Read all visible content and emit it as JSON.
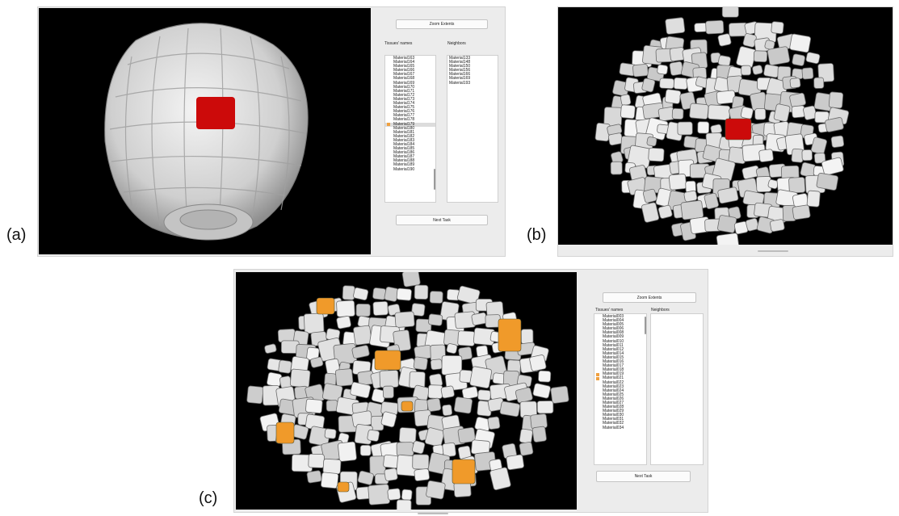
{
  "labels": {
    "a": "(a)",
    "b": "(b)",
    "c": "(c)"
  },
  "colors": {
    "selected_tissue": "#cc0a0a",
    "neighbor_tissue": "#f09a2a",
    "background": "#000000",
    "cell": "#e4e4e4"
  },
  "panel_a": {
    "zoom_label": "Zoom Extents",
    "tissues_header": "Tissues' names",
    "neighbors_header": "Neighbors",
    "tissues": [
      {
        "name": "Material163"
      },
      {
        "name": "Material164"
      },
      {
        "name": "Material165"
      },
      {
        "name": "Material166"
      },
      {
        "name": "Material167"
      },
      {
        "name": "Material168"
      },
      {
        "name": "Material169"
      },
      {
        "name": "Material170"
      },
      {
        "name": "Material171"
      },
      {
        "name": "Material172"
      },
      {
        "name": "Material173"
      },
      {
        "name": "Material174"
      },
      {
        "name": "Material175"
      },
      {
        "name": "Material176"
      },
      {
        "name": "Material177"
      },
      {
        "name": "Material178"
      },
      {
        "name": "Material179",
        "marked": true,
        "selected": true
      },
      {
        "name": "Material180"
      },
      {
        "name": "Material181"
      },
      {
        "name": "Material182"
      },
      {
        "name": "Material183"
      },
      {
        "name": "Material184"
      },
      {
        "name": "Material185"
      },
      {
        "name": "Material186"
      },
      {
        "name": "Material187"
      },
      {
        "name": "Material188"
      },
      {
        "name": "Material189"
      },
      {
        "name": "Material190"
      }
    ],
    "neighbors": [
      "Material133",
      "Material148",
      "Material150",
      "Material156",
      "Material166",
      "Material169",
      "Material193"
    ],
    "next_label": "Next Task"
  },
  "panel_c": {
    "zoom_label": "Zoom Extents",
    "tissues_header": "Tissues' names",
    "neighbors_header": "Neighbors",
    "tissues": [
      {
        "name": "Material003"
      },
      {
        "name": "Material004"
      },
      {
        "name": "Material005"
      },
      {
        "name": "Material006"
      },
      {
        "name": "Material008"
      },
      {
        "name": "Material009"
      },
      {
        "name": "Material010"
      },
      {
        "name": "Material011"
      },
      {
        "name": "Material012"
      },
      {
        "name": "Material014"
      },
      {
        "name": "Material015"
      },
      {
        "name": "Material016"
      },
      {
        "name": "Material017"
      },
      {
        "name": "Material018"
      },
      {
        "name": "Material019",
        "marked": true
      },
      {
        "name": "Material021",
        "marked": true
      },
      {
        "name": "Material022"
      },
      {
        "name": "Material023"
      },
      {
        "name": "Material024"
      },
      {
        "name": "Material025"
      },
      {
        "name": "Material026"
      },
      {
        "name": "Material027"
      },
      {
        "name": "Material028"
      },
      {
        "name": "Material029"
      },
      {
        "name": "Material030"
      },
      {
        "name": "Material031"
      },
      {
        "name": "Material032"
      },
      {
        "name": "Material034"
      }
    ],
    "neighbors": [],
    "next_label": "Next Task"
  }
}
